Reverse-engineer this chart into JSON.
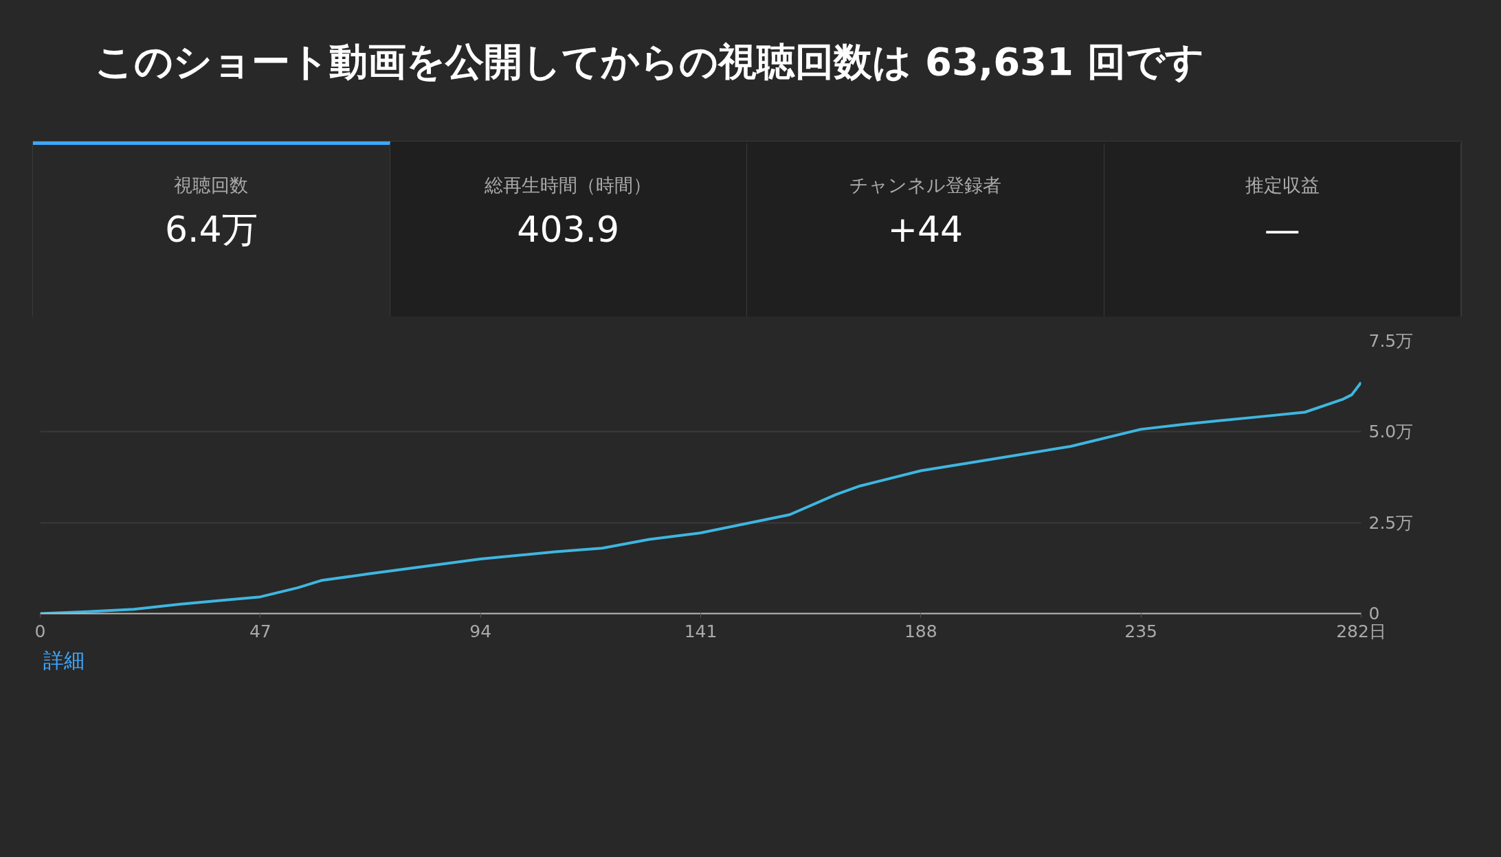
{
  "chart_data": [
    {
      "type": "other",
      "title": "このショート動画を公開してからの視聴回数は 63,631 回です",
      "annotations": [
        "視聴回数",
        "6.4万",
        "総再生時間（時間）",
        "403.9",
        "チャンネル登録者",
        "+44",
        "推定収益",
        "—"
      ]
    },
    {
      "type": "line",
      "x": [
        0,
        10,
        20,
        30,
        40,
        47,
        55,
        60,
        70,
        94,
        110,
        120,
        130,
        141,
        160,
        170,
        175,
        188,
        200,
        220,
        235,
        245,
        260,
        270,
        278,
        280,
        282
      ],
      "series": [
        {
          "color": "#3fb6e0",
          "values": [
            0,
            0.05,
            0.12,
            0.26,
            0.38,
            0.46,
            0.71,
            0.91,
            1.09,
            1.5,
            1.7,
            1.8,
            2.04,
            2.22,
            2.72,
            3.28,
            3.51,
            3.93,
            4.18,
            4.6,
            5.07,
            5.22,
            5.41,
            5.54,
            5.89,
            6.02,
            6.36
          ]
        }
      ],
      "xlim": [
        0,
        282
      ],
      "xticks": [
        0,
        47,
        94,
        141,
        188,
        235,
        {
          "value": 282,
          "label": "282日"
        }
      ],
      "ylim": [
        0,
        7.5
      ],
      "yticks": [
        0,
        {
          "value": 2.5,
          "label": "2.5万"
        },
        {
          "value": 5.0,
          "label": "5.0万"
        },
        {
          "value": 7.5,
          "label": "7.5万"
        }
      ],
      "grid": "y",
      "annotations": [
        "詳細"
      ]
    }
  ]
}
